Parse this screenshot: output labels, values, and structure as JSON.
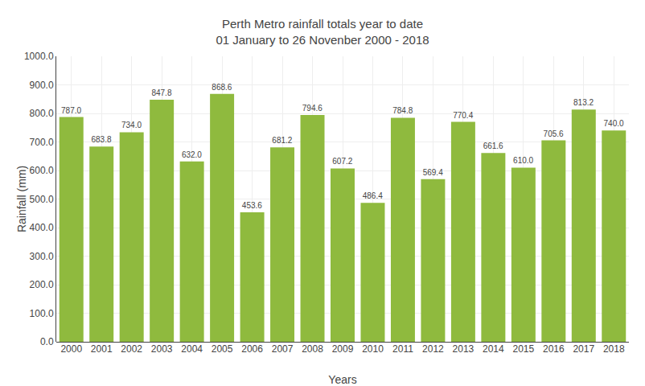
{
  "chart_data": {
    "type": "bar",
    "title": "Perth Metro rainfall totals year to date",
    "subtitle": "01 January to 26 Novenber 2000 - 2018",
    "x_label": "Years",
    "y_label": "Rainfall (mm)",
    "categories": [
      "2000",
      "2001",
      "2002",
      "2003",
      "2004",
      "2005",
      "2006",
      "2007",
      "2008",
      "2009",
      "2010",
      "2011",
      "2012",
      "2013",
      "2014",
      "2015",
      "2016",
      "2017",
      "2018"
    ],
    "values": [
      787.0,
      683.8,
      734.0,
      847.8,
      632.0,
      868.6,
      453.6,
      681.2,
      794.6,
      607.2,
      486.4,
      784.8,
      569.4,
      770.4,
      661.6,
      610.0,
      705.6,
      813.2,
      740.0
    ],
    "value_labels": [
      "787.0",
      "683.8",
      "734.0",
      "847.8",
      "632.0",
      "868.6",
      "453.6",
      "681.2",
      "794.6",
      "607.2",
      "486.4",
      "784.8",
      "569.4",
      "770.4",
      "661.6",
      "610.0",
      "705.6",
      "813.2",
      "740.0"
    ],
    "data_labels": true,
    "color": "#8fba3e",
    "ylim": [
      0,
      1000
    ],
    "yticks": [
      {
        "value": 0,
        "label": "0.0"
      },
      {
        "value": 100,
        "label": "100.0"
      },
      {
        "value": 200,
        "label": "200.0"
      },
      {
        "value": 300,
        "label": "300.0"
      },
      {
        "value": 400,
        "label": "400.0"
      },
      {
        "value": 500,
        "label": "500.0"
      },
      {
        "value": 600,
        "label": "600.0"
      },
      {
        "value": 700,
        "label": "700.0"
      },
      {
        "value": 800,
        "label": "800.0"
      },
      {
        "value": 900,
        "label": "900.0"
      },
      {
        "value": 1000,
        "label": "1000.0"
      }
    ],
    "grid": true
  }
}
